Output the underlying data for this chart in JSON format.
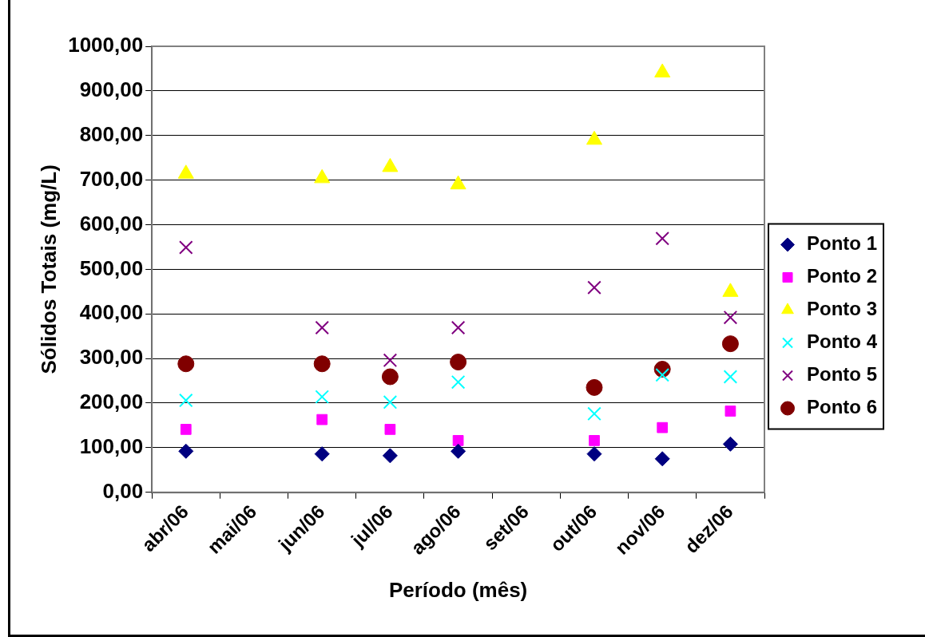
{
  "chart_data": {
    "type": "scatter",
    "xlabel": "Período (mês)",
    "ylabel": "Sólidos Totais (mg/L)",
    "categories": [
      "abr/06",
      "mai/06",
      "jun/06",
      "jul/06",
      "ago/06",
      "set/06",
      "out/06",
      "nov/06",
      "dez/06"
    ],
    "ylim": [
      0,
      1000
    ],
    "yticks": [
      {
        "value": 0,
        "label": "0,00"
      },
      {
        "value": 100,
        "label": "100,00"
      },
      {
        "value": 200,
        "label": "200,00"
      },
      {
        "value": 300,
        "label": "300,00"
      },
      {
        "value": 400,
        "label": "400,00"
      },
      {
        "value": 500,
        "label": "500,00"
      },
      {
        "value": 600,
        "label": "600,00"
      },
      {
        "value": 700,
        "label": "700,00"
      },
      {
        "value": 800,
        "label": "800,00"
      },
      {
        "value": 900,
        "label": "900,00"
      },
      {
        "value": 1000,
        "label": "1000,00"
      }
    ],
    "grid": "y",
    "legend": "right",
    "series": [
      {
        "name": "Ponto 1",
        "color": "#000080",
        "marker": "diamond",
        "values": [
          92,
          null,
          86,
          82,
          92,
          null,
          86,
          75,
          108
        ]
      },
      {
        "name": "Ponto 2",
        "color": "#ff00ff",
        "marker": "square",
        "values": [
          141,
          null,
          163,
          141,
          116,
          null,
          116,
          145,
          182
        ]
      },
      {
        "name": "Ponto 3",
        "color": "#ffff00",
        "marker": "triangle",
        "values": [
          714,
          null,
          704,
          729,
          690,
          null,
          790,
          941,
          449
        ]
      },
      {
        "name": "Ponto 4",
        "color": "#00ffff",
        "marker": "cross",
        "values": [
          206,
          null,
          214,
          202,
          247,
          null,
          176,
          263,
          259
        ]
      },
      {
        "name": "Ponto 5",
        "color": "#800080",
        "marker": "cross",
        "values": [
          549,
          null,
          369,
          296,
          369,
          null,
          459,
          569,
          392
        ]
      },
      {
        "name": "Ponto 6",
        "color": "#800000",
        "marker": "circle",
        "values": [
          288,
          null,
          288,
          259,
          292,
          null,
          235,
          276,
          333
        ]
      }
    ]
  }
}
